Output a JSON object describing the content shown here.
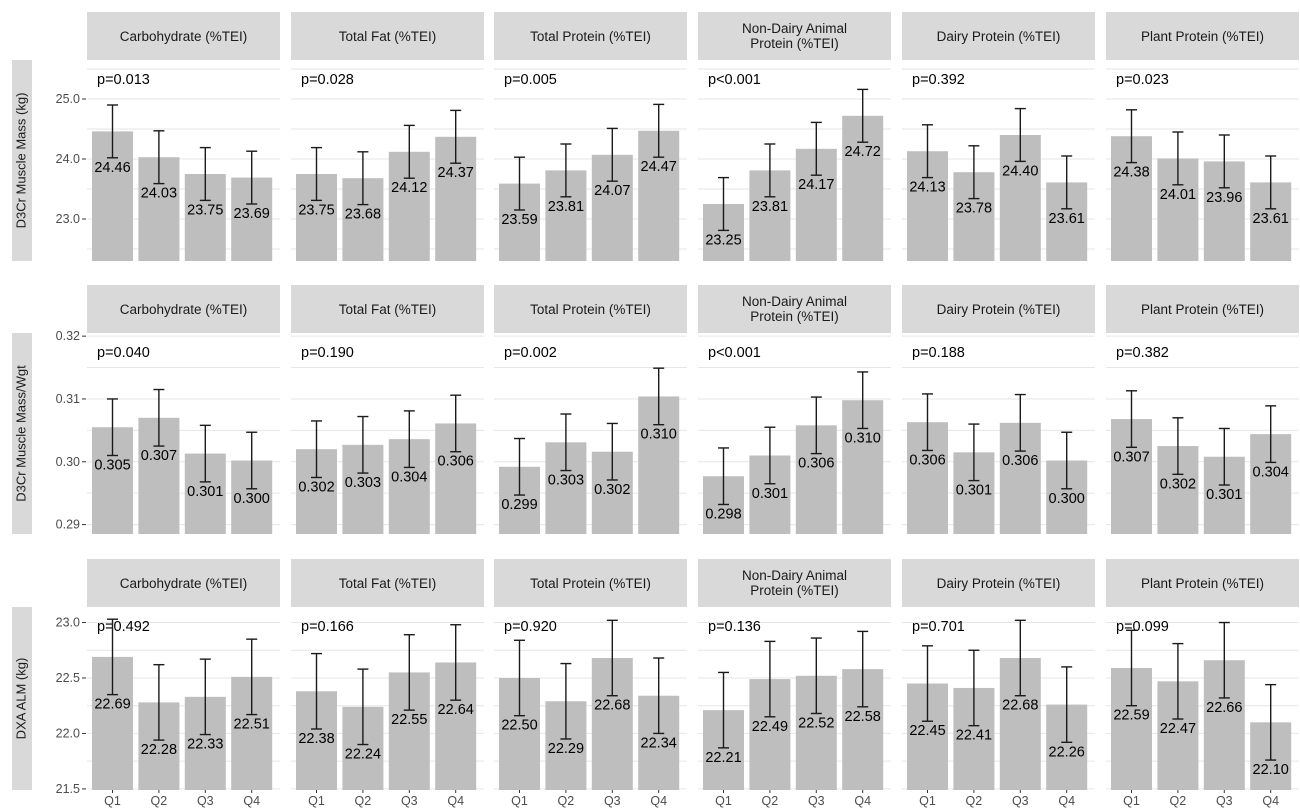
{
  "chart_data": {
    "type": "bar",
    "layout": "facet-grid",
    "categories": [
      "Q1",
      "Q2",
      "Q3",
      "Q4"
    ],
    "columns": [
      "Carbohydrate (%TEI)",
      "Total Fat (%TEI)",
      "Total Protein (%TEI)",
      "Non-Dairy Animal\nProtein (%TEI)",
      "Dairy Protein (%TEI)",
      "Plant Protein (%TEI)"
    ],
    "rows": [
      {
        "ylabel": "D3Cr Muscle Mass (kg)",
        "ylim": [
          22.3,
          25.65
        ],
        "yticks": [
          23.0,
          24.0,
          25.0
        ],
        "tick_format": "1dp",
        "label_format": "2dp",
        "panels": [
          {
            "p": "p=0.013",
            "values": [
              24.46,
              24.03,
              23.75,
              23.69
            ],
            "err_low": [
              24.02,
              23.59,
              23.31,
              23.25
            ],
            "err_high": [
              24.9,
              24.47,
              24.19,
              24.13
            ]
          },
          {
            "p": "p=0.028",
            "values": [
              23.75,
              23.68,
              24.12,
              24.37
            ],
            "err_low": [
              23.31,
              23.24,
              23.68,
              23.93
            ],
            "err_high": [
              24.19,
              24.12,
              24.56,
              24.81
            ]
          },
          {
            "p": "p=0.005",
            "values": [
              23.59,
              23.81,
              24.07,
              24.47
            ],
            "err_low": [
              23.15,
              23.37,
              23.63,
              24.03
            ],
            "err_high": [
              24.03,
              24.25,
              24.51,
              24.91
            ]
          },
          {
            "p": "p<0.001",
            "values": [
              23.25,
              23.81,
              24.17,
              24.72
            ],
            "err_low": [
              22.81,
              23.37,
              23.73,
              24.28
            ],
            "err_high": [
              23.69,
              24.25,
              24.61,
              25.16
            ]
          },
          {
            "p": "p=0.392",
            "values": [
              24.13,
              23.78,
              24.4,
              23.61
            ],
            "err_low": [
              23.69,
              23.34,
              23.96,
              23.17
            ],
            "err_high": [
              24.57,
              24.22,
              24.84,
              24.05
            ]
          },
          {
            "p": "p=0.023",
            "values": [
              24.38,
              24.01,
              23.96,
              23.61
            ],
            "err_low": [
              23.94,
              23.57,
              23.52,
              23.17
            ],
            "err_high": [
              24.82,
              24.45,
              24.4,
              24.05
            ]
          }
        ]
      },
      {
        "ylabel": "D3Cr Muscle Mass/Wgt",
        "ylim": [
          0.2885,
          0.3205
        ],
        "yticks": [
          0.29,
          0.3,
          0.31,
          0.32
        ],
        "tick_format": "2dp",
        "label_format": "3dp",
        "panels": [
          {
            "p": "p=0.040",
            "values": [
              0.3055,
              0.307,
              0.3013,
              0.3002
            ],
            "err_low": [
              0.301,
              0.3025,
              0.2968,
              0.2957
            ],
            "err_high": [
              0.31,
              0.3115,
              0.3058,
              0.3047
            ]
          },
          {
            "p": "p=0.190",
            "values": [
              0.302,
              0.3027,
              0.3036,
              0.3061
            ],
            "err_low": [
              0.2975,
              0.2982,
              0.2991,
              0.3016
            ],
            "err_high": [
              0.3065,
              0.3072,
              0.3081,
              0.3106
            ]
          },
          {
            "p": "p=0.002",
            "values": [
              0.2992,
              0.3031,
              0.3016,
              0.3104
            ],
            "err_low": [
              0.2947,
              0.2986,
              0.2971,
              0.3059
            ],
            "err_high": [
              0.3037,
              0.3076,
              0.3061,
              0.3149
            ]
          },
          {
            "p": "p<0.001",
            "values": [
              0.2977,
              0.301,
              0.3058,
              0.3098
            ],
            "err_low": [
              0.2932,
              0.2965,
              0.3013,
              0.3053
            ],
            "err_high": [
              0.3022,
              0.3055,
              0.3103,
              0.3143
            ]
          },
          {
            "p": "p=0.188",
            "values": [
              0.3063,
              0.3015,
              0.3062,
              0.3002
            ],
            "err_low": [
              0.3018,
              0.297,
              0.3017,
              0.2957
            ],
            "err_high": [
              0.3108,
              0.306,
              0.3107,
              0.3047
            ]
          },
          {
            "p": "p=0.382",
            "values": [
              0.3068,
              0.3025,
              0.3008,
              0.3044
            ],
            "err_low": [
              0.3023,
              0.298,
              0.2963,
              0.2999
            ],
            "err_high": [
              0.3113,
              0.307,
              0.3053,
              0.3089
            ]
          }
        ]
      },
      {
        "ylabel": "DXA ALM (kg)",
        "ylim": [
          21.49,
          23.14
        ],
        "yticks": [
          21.5,
          22.0,
          22.5,
          23.0
        ],
        "tick_format": "1dp",
        "label_format": "2dp",
        "panels": [
          {
            "p": "p=0.492",
            "values": [
              22.69,
              22.28,
              22.33,
              22.51
            ],
            "err_low": [
              22.35,
              21.94,
              21.99,
              22.17
            ],
            "err_high": [
              23.03,
              22.62,
              22.67,
              22.85
            ]
          },
          {
            "p": "p=0.166",
            "values": [
              22.38,
              22.24,
              22.55,
              22.64
            ],
            "err_low": [
              22.04,
              21.9,
              22.21,
              22.3
            ],
            "err_high": [
              22.72,
              22.58,
              22.89,
              22.98
            ]
          },
          {
            "p": "p=0.920",
            "values": [
              22.5,
              22.29,
              22.68,
              22.34
            ],
            "err_low": [
              22.16,
              21.95,
              22.34,
              22.0
            ],
            "err_high": [
              22.84,
              22.63,
              23.02,
              22.68
            ]
          },
          {
            "p": "p=0.136",
            "values": [
              22.21,
              22.49,
              22.52,
              22.58
            ],
            "err_low": [
              21.87,
              22.15,
              22.18,
              22.24
            ],
            "err_high": [
              22.55,
              22.83,
              22.86,
              22.92
            ]
          },
          {
            "p": "p=0.701",
            "values": [
              22.45,
              22.41,
              22.68,
              22.26
            ],
            "err_low": [
              22.11,
              22.07,
              22.34,
              21.92
            ],
            "err_high": [
              22.79,
              22.75,
              23.02,
              22.6
            ]
          },
          {
            "p": "p=0.099",
            "values": [
              22.59,
              22.47,
              22.66,
              22.1
            ],
            "err_low": [
              22.25,
              22.13,
              22.32,
              21.76
            ],
            "err_high": [
              22.93,
              22.81,
              23.0,
              22.44
            ]
          }
        ]
      }
    ],
    "colors": {
      "bar": "#bebebe",
      "strip": "#d9d9d9",
      "gridline": "#e6e6e6",
      "errorbar": "#1a1a1a",
      "text": "#000000"
    },
    "grid": true,
    "legend": "none"
  }
}
